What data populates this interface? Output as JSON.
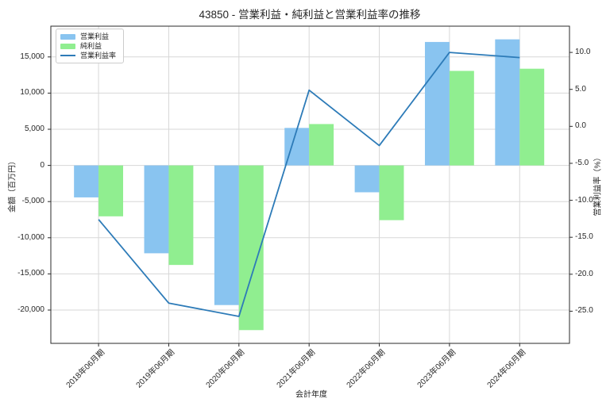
{
  "chart_data": {
    "type": "combo-bar-line",
    "title": "43850 - 営業利益・純利益と営業利益率の推移",
    "xlabel": "会計年度",
    "ylabel_left": "金額（百万円）",
    "ylabel_right": "営業利益率（%）",
    "categories": [
      "2018年06月期",
      "2019年06月期",
      "2020年06月期",
      "2021年06月期",
      "2022年06月期",
      "2023年06月期",
      "2024年06月期"
    ],
    "series": [
      {
        "name": "営業利益",
        "type": "bar",
        "axis": "left",
        "color": "#89C4F0",
        "values": [
          -4422,
          -12149,
          -19308,
          5184,
          -3715,
          17071,
          17432
        ]
      },
      {
        "name": "純利益",
        "type": "bar",
        "axis": "left",
        "color": "#90EE90",
        "values": [
          -7041,
          -13764,
          -22772,
          5720,
          -7569,
          13070,
          13370
        ]
      },
      {
        "name": "営業利益率",
        "type": "line",
        "axis": "right",
        "color": "#2D7BB8",
        "values": [
          -12.6,
          -23.9,
          -25.7,
          4.9,
          -2.6,
          10.0,
          9.3
        ]
      }
    ],
    "yticks_left": {
      "values": [
        15000,
        10000,
        5000,
        0,
        -5000,
        -10000,
        -15000,
        -20000
      ],
      "labels": [
        "15,000",
        "10,000",
        "5,000",
        "0",
        "-5,000",
        "-10,000",
        "-15,000",
        "-20,000"
      ]
    },
    "yticks_right": {
      "values": [
        10,
        5,
        0,
        -5,
        -10,
        -15,
        -20,
        -25
      ],
      "labels": [
        "10.0",
        "5.0",
        "0.0",
        "-5.0",
        "-10.0",
        "-15.0",
        "-20.0",
        "-25.0"
      ]
    },
    "ylim_left": [
      -24605,
      19255
    ],
    "ylim_right": [
      -29.35,
      13.55
    ],
    "xlim": [
      -0.68,
      6.71
    ],
    "bar_width": 0.35,
    "grid": true,
    "legend_position": "upper left"
  },
  "colors": {
    "background": "#FFFFFF",
    "grid": "#D7D7D7",
    "spine": "#2A2A2A",
    "text": "#262626",
    "legend_border": "#CCCCCC"
  }
}
